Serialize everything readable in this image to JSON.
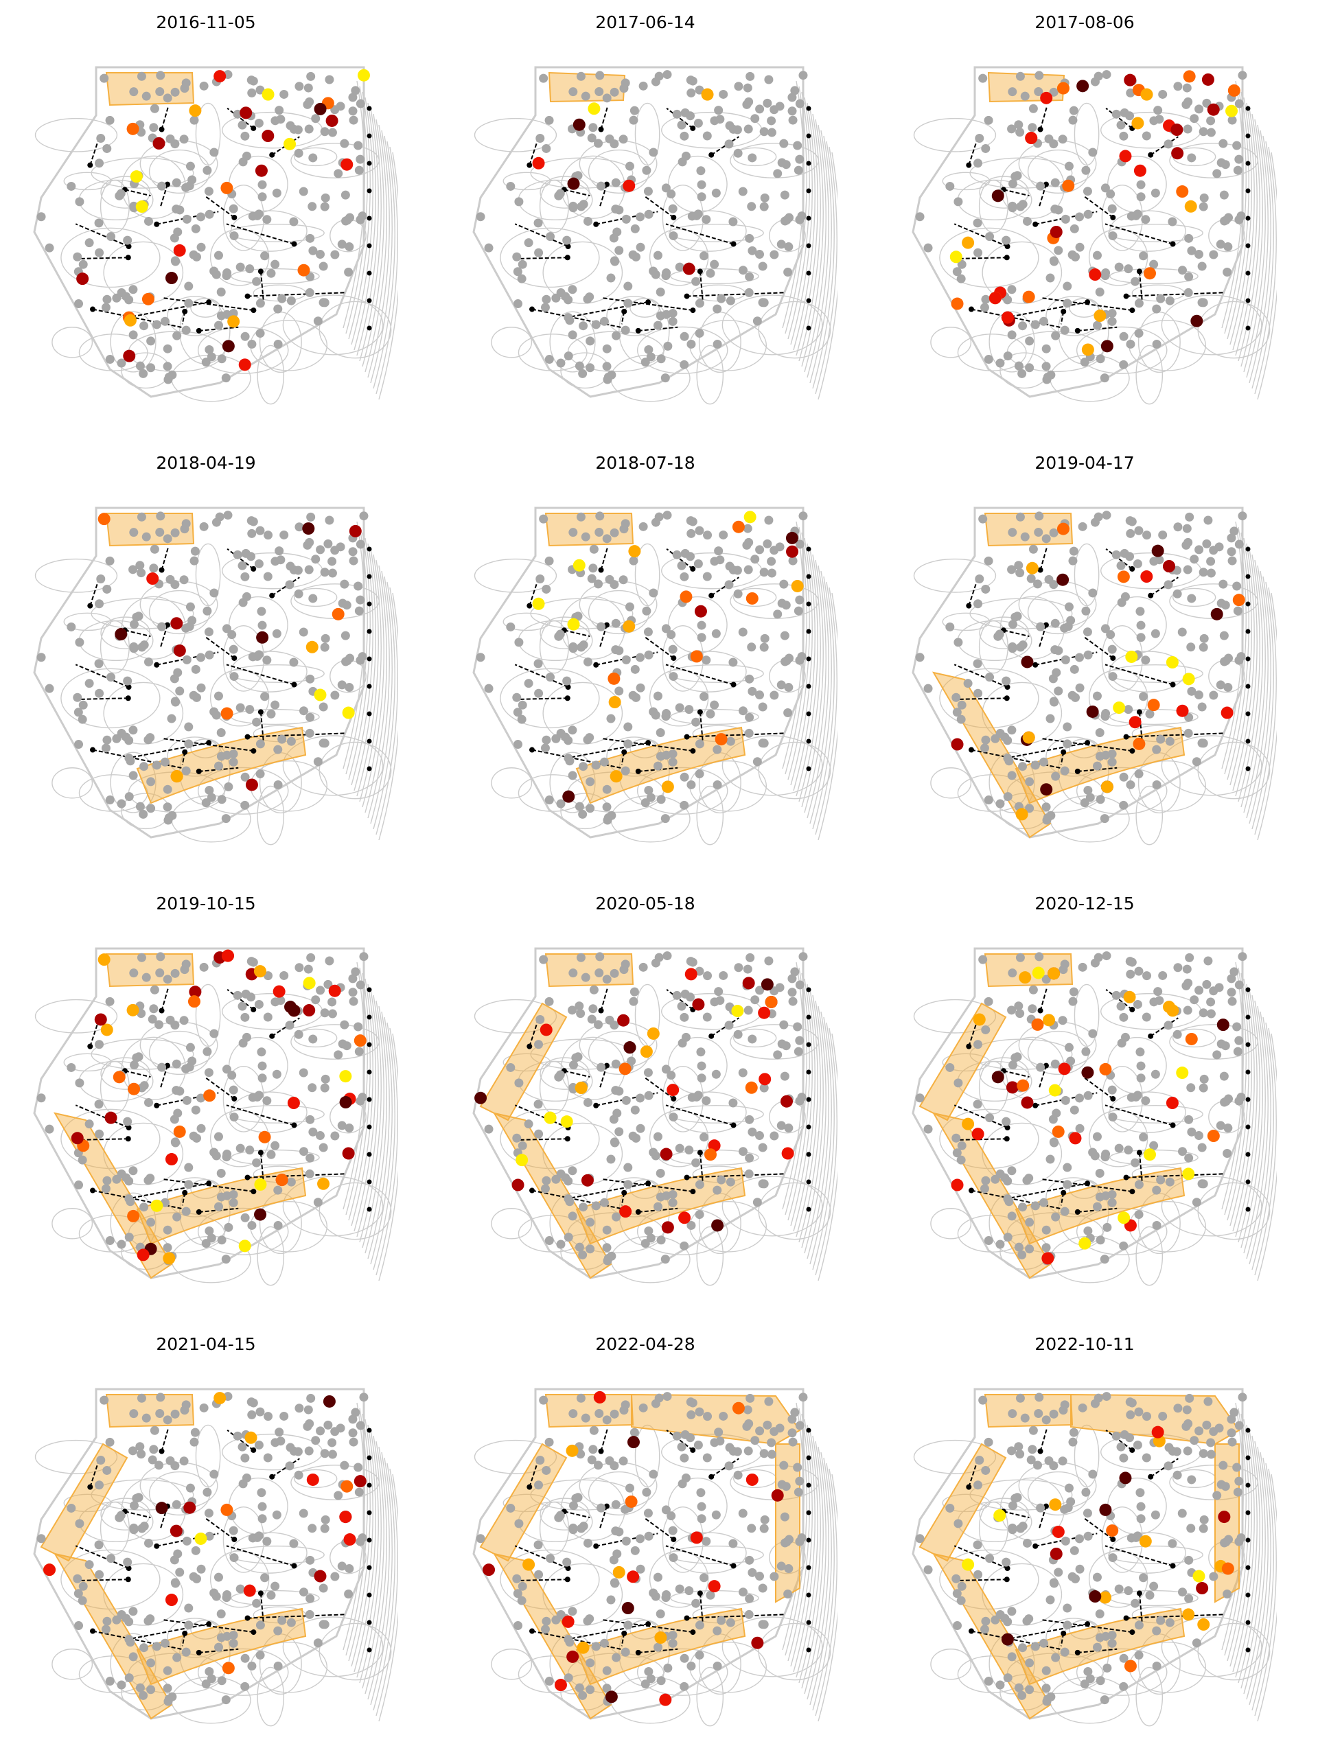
{
  "colors": {
    "background": "#ffffff",
    "contour": "#cccccc",
    "hatch": "#f5b041",
    "node_inactive": "#a6a6a6",
    "node_small": "#000000",
    "track": "#000000",
    "heat_scale": [
      "#ffee00",
      "#ffaa00",
      "#ff6600",
      "#ee1100",
      "#aa0000",
      "#550000"
    ]
  },
  "chart_data": {
    "type": "scatter",
    "panels": [
      {
        "title": "2016-11-05",
        "hatch": [
          "top"
        ],
        "active": 28
      },
      {
        "title": "2017-06-14",
        "hatch": [
          "top-small"
        ],
        "active": 7
      },
      {
        "title": "2017-08-06",
        "hatch": [
          "top-small"
        ],
        "active": 42
      },
      {
        "title": "2018-04-19",
        "hatch": [
          "top",
          "bottom"
        ],
        "active": 16
      },
      {
        "title": "2018-07-18",
        "hatch": [
          "top",
          "bottom"
        ],
        "active": 20
      },
      {
        "title": "2019-04-17",
        "hatch": [
          "top",
          "bottom",
          "lower-left"
        ],
        "active": 30
      },
      {
        "title": "2019-10-15",
        "hatch": [
          "top",
          "bottom",
          "lower-left"
        ],
        "active": 44
      },
      {
        "title": "2020-05-18",
        "hatch": [
          "top",
          "bottom",
          "lower-left",
          "upper-left"
        ],
        "active": 36
      },
      {
        "title": "2020-12-15",
        "hatch": [
          "top",
          "bottom",
          "lower-left",
          "upper-left"
        ],
        "active": 34
      },
      {
        "title": "2021-04-15",
        "hatch": [
          "top",
          "lower-left",
          "upper-left",
          "bottom"
        ],
        "active": 20
      },
      {
        "title": "2022-04-28",
        "hatch": [
          "top",
          "bottom",
          "lower-left",
          "upper-left",
          "right",
          "top-right"
        ],
        "active": 22
      },
      {
        "title": "2022-10-11",
        "hatch": [
          "top",
          "bottom",
          "lower-left",
          "upper-left",
          "right",
          "top-right"
        ],
        "active": 22
      }
    ]
  }
}
